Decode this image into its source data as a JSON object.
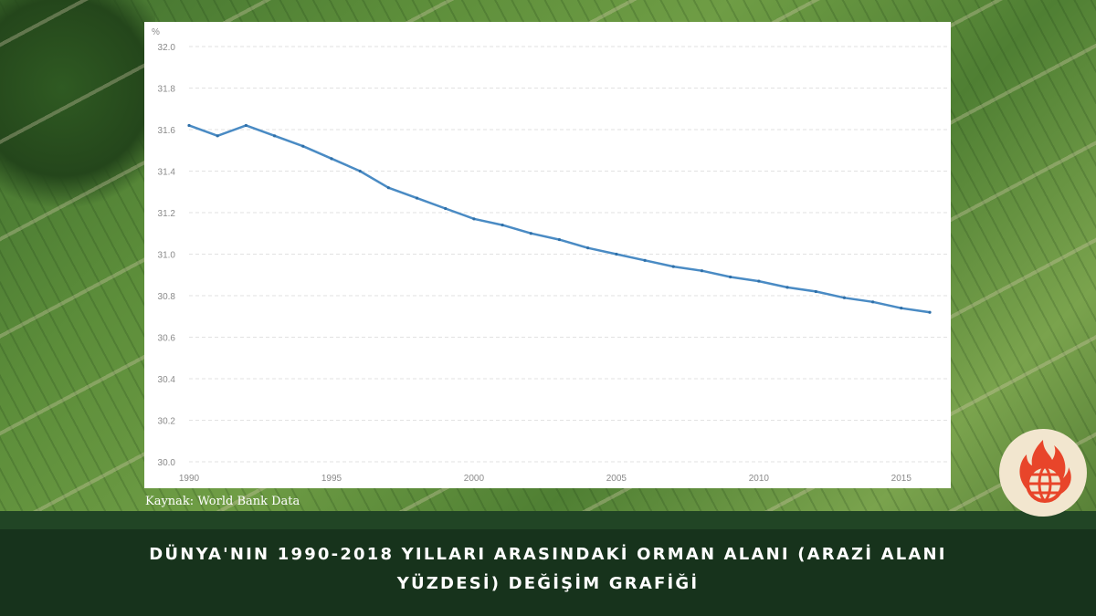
{
  "caption": {
    "line1": "DÜNYA'NIN 1990-2018 YILLARI ARASINDAKİ ORMAN ALANI (ARAZİ ALANI",
    "line2": "YÜZDESİ) DEĞİŞİM GRAFİĞİ"
  },
  "source_text": "Kaynak: World Bank Data",
  "logo_icon": "flaming-globe-logo-icon",
  "colors": {
    "line": "#4a8bc4",
    "footer": "#17331c",
    "logo_red": "#e8452a"
  },
  "chart_data": {
    "type": "line",
    "unit_label": "%",
    "x": [
      1990,
      1991,
      1992,
      1993,
      1994,
      1995,
      1996,
      1997,
      1998,
      1999,
      2000,
      2001,
      2002,
      2003,
      2004,
      2005,
      2006,
      2007,
      2008,
      2009,
      2010,
      2011,
      2012,
      2013,
      2014,
      2015,
      2016
    ],
    "series": [
      {
        "values": [
          31.62,
          31.57,
          31.62,
          31.57,
          31.52,
          31.46,
          31.4,
          31.32,
          31.27,
          31.22,
          31.17,
          31.14,
          31.1,
          31.07,
          31.03,
          31.0,
          30.97,
          30.94,
          30.92,
          30.89,
          30.87,
          30.84,
          30.82,
          30.79,
          30.77,
          30.74,
          30.72
        ]
      }
    ],
    "xticks": [
      1990,
      1995,
      2000,
      2005,
      2010,
      2015
    ],
    "yticks": [
      30.0,
      30.2,
      30.4,
      30.6,
      30.8,
      31.0,
      31.2,
      31.4,
      31.6,
      31.8,
      32.0
    ],
    "ylim": [
      30.0,
      32.0
    ],
    "xlim": [
      1990,
      2016
    ],
    "grid": true,
    "legend": "none"
  }
}
